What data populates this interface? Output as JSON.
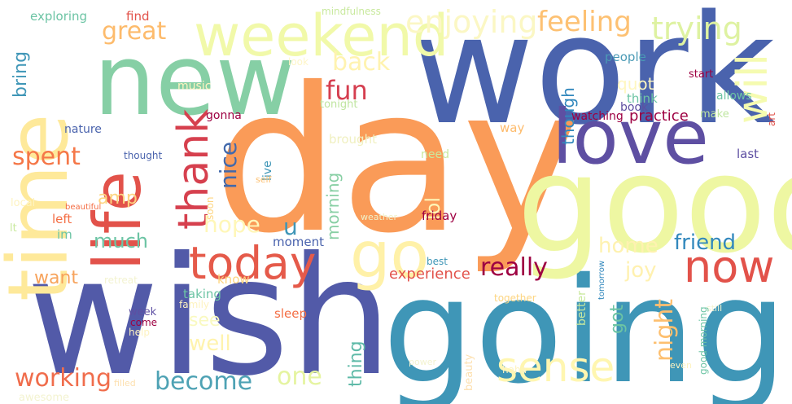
{
  "words": [
    {
      "text": "work",
      "color": "#4a63ad"
    },
    {
      "text": "day",
      "color": "#fa9b58"
    },
    {
      "text": "wish",
      "color": "#525aa8"
    },
    {
      "text": "going",
      "color": "#3f96b7"
    },
    {
      "text": "good",
      "color": "#eef7a2"
    },
    {
      "text": "new",
      "color": "#86cfa5"
    },
    {
      "text": "time",
      "color": "#fee99a"
    },
    {
      "text": "love",
      "color": "#5e4fa2"
    },
    {
      "text": "life",
      "color": "#e2524a"
    },
    {
      "text": "weekend",
      "color": "#f1f9a9"
    },
    {
      "text": "go",
      "color": "#fff1a8"
    },
    {
      "text": "now",
      "color": "#e2524a"
    },
    {
      "text": "today",
      "color": "#e55a4a"
    },
    {
      "text": "thank",
      "color": "#d6404e"
    },
    {
      "text": "will",
      "color": "#f5fbb0"
    },
    {
      "text": "sense",
      "color": "#fff6b0"
    },
    {
      "text": "enjoying",
      "color": "#fbf7c4"
    },
    {
      "text": "feeling",
      "color": "#fdc173"
    },
    {
      "text": "trying",
      "color": "#def2a1"
    },
    {
      "text": "great",
      "color": "#fdbb6c"
    },
    {
      "text": "back",
      "color": "#fff3b0"
    },
    {
      "text": "fun",
      "color": "#d53e4f"
    },
    {
      "text": "spent",
      "color": "#f57748"
    },
    {
      "text": "nice",
      "color": "#4269ab"
    },
    {
      "text": "hope",
      "color": "#fff7b8"
    },
    {
      "text": "become",
      "color": "#4ea2b4"
    },
    {
      "text": "working",
      "color": "#f06d4c"
    },
    {
      "text": "one",
      "color": "#e5f4a0"
    },
    {
      "text": "really",
      "color": "#9e0142"
    },
    {
      "text": "home",
      "color": "#fef2b0"
    },
    {
      "text": "friend",
      "color": "#3288bd"
    },
    {
      "text": "joy",
      "color": "#fff1b0"
    },
    {
      "text": "much",
      "color": "#6cc4a4"
    },
    {
      "text": "want",
      "color": "#f7a35c"
    },
    {
      "text": "night",
      "color": "#fdbf6f"
    },
    {
      "text": "amp",
      "color": "#fdd581"
    },
    {
      "text": "u",
      "color": "#3f96b7"
    },
    {
      "text": "lol",
      "color": "#fef6b8"
    },
    {
      "text": "morning",
      "color": "#88cfa4"
    },
    {
      "text": "bring",
      "color": "#3f96b7"
    },
    {
      "text": "thing",
      "color": "#5fbaa8"
    },
    {
      "text": "well",
      "color": "#fff3ad"
    },
    {
      "text": "see",
      "color": "#f9f9c0"
    },
    {
      "text": "got",
      "color": "#6cc4a4"
    },
    {
      "text": "though",
      "color": "#3288bd"
    },
    {
      "text": "quot",
      "color": "#fff7c0"
    },
    {
      "text": "experience",
      "color": "#e2524a"
    },
    {
      "text": "practice",
      "color": "#9e0142"
    },
    {
      "text": "moment",
      "color": "#4a63ad"
    },
    {
      "text": "friday",
      "color": "#9e0142"
    },
    {
      "text": "taking",
      "color": "#6cc4a4"
    },
    {
      "text": "sleep",
      "color": "#f46d43"
    },
    {
      "text": "know",
      "color": "#fdd581"
    },
    {
      "text": "think",
      "color": "#6cc4a4"
    },
    {
      "text": "people",
      "color": "#4a9ab5"
    },
    {
      "text": "book",
      "color": "#5e4fa2"
    },
    {
      "text": "exploring",
      "color": "#6cc4a4"
    },
    {
      "text": "find",
      "color": "#e2524a"
    },
    {
      "text": "mindfulness",
      "color": "#c9e99e"
    },
    {
      "text": "music",
      "color": "#fff3c0"
    },
    {
      "text": "tonight",
      "color": "#bfe5a0"
    },
    {
      "text": "nature",
      "color": "#4a63ad"
    },
    {
      "text": "gonna",
      "color": "#9e0142"
    },
    {
      "text": "thought",
      "color": "#4a63ad"
    },
    {
      "text": "live",
      "color": "#3f96b7"
    },
    {
      "text": "self",
      "color": "#fdbf6f"
    },
    {
      "text": "soon",
      "color": "#fdd581"
    },
    {
      "text": "brought",
      "color": "#f0f0c0"
    },
    {
      "text": "need",
      "color": "#c9e99e"
    },
    {
      "text": "way",
      "color": "#fdbb6c"
    },
    {
      "text": "watching",
      "color": "#9e0142"
    },
    {
      "text": "make",
      "color": "#bfe5a0"
    },
    {
      "text": "allows",
      "color": "#6cc4a4"
    },
    {
      "text": "start",
      "color": "#9e0142"
    },
    {
      "text": "last",
      "color": "#5e4fa2"
    },
    {
      "text": "look",
      "color": "#fef6c8"
    },
    {
      "text": "art",
      "color": "#e2524a"
    },
    {
      "text": "best",
      "color": "#3f96b7"
    },
    {
      "text": "together",
      "color": "#fdd581"
    },
    {
      "text": "better",
      "color": "#c9e99e"
    },
    {
      "text": "tomorrow",
      "color": "#3288bd"
    },
    {
      "text": "left",
      "color": "#f46d43"
    },
    {
      "text": "im",
      "color": "#6cc4a4"
    },
    {
      "text": "lt",
      "color": "#c9e99e"
    },
    {
      "text": "local",
      "color": "#fef3c0"
    },
    {
      "text": "beautiful",
      "color": "#f46d43"
    },
    {
      "text": "weather",
      "color": "#f0f0c8"
    },
    {
      "text": "retreat",
      "color": "#f3f3d0"
    },
    {
      "text": "family",
      "color": "#fef3c0"
    },
    {
      "text": "week",
      "color": "#5e4fa2"
    },
    {
      "text": "come",
      "color": "#9e0142"
    },
    {
      "text": "help",
      "color": "#fef3c0"
    },
    {
      "text": "awesome",
      "color": "#f3f3d0"
    },
    {
      "text": "filled",
      "color": "#fde0b0"
    },
    {
      "text": "power",
      "color": "#f3f3d0"
    },
    {
      "text": "beauty",
      "color": "#fde0b0"
    },
    {
      "text": "haha",
      "color": "#fef3c0"
    },
    {
      "text": "still",
      "color": "#f3f3d0"
    },
    {
      "text": "good morning",
      "color": "#6cc4a4"
    },
    {
      "text": "even",
      "color": "#fef3c0"
    }
  ]
}
